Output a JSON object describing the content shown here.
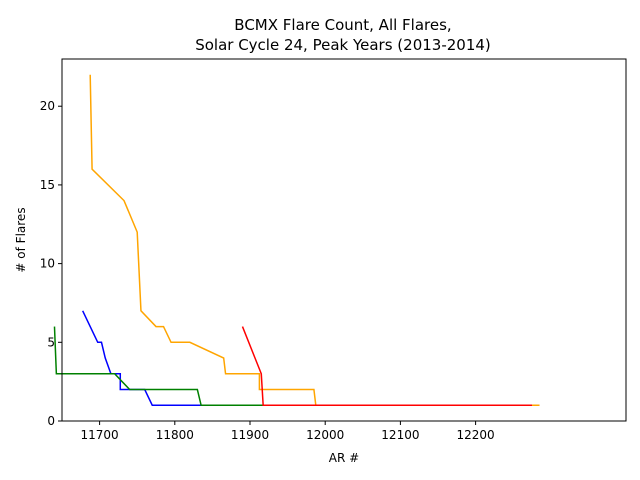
{
  "chart_data": {
    "type": "line",
    "title_line1": "BCMX Flare Count, All Flares,",
    "title_line2": "Solar Cycle 24, Peak Years (2013-2014)",
    "xlabel": "AR #",
    "ylabel": "# of Flares",
    "xlim": [
      12130,
      12280
    ],
    "ylim": [
      0,
      23
    ],
    "xticks": [
      {
        "value": 12140,
        "label": "11700"
      },
      {
        "value": 12160,
        "label": "11800"
      },
      {
        "value": 12180,
        "label": "11900"
      },
      {
        "value": 12200,
        "label": "12000"
      },
      {
        "value": 12220,
        "label": "12100"
      },
      {
        "value": 12240,
        "label": "12200"
      }
    ],
    "yticks": [
      0,
      5,
      10,
      15,
      20
    ],
    "grid": false,
    "series": [
      {
        "class": "B",
        "color": "#0000ff",
        "points": [
          [
            12135.5,
            7
          ],
          [
            12137.5,
            6
          ],
          [
            12138.5,
            5.5
          ],
          [
            12139.5,
            5
          ],
          [
            12140.5,
            5
          ],
          [
            12141.5,
            4
          ],
          [
            12143,
            3
          ],
          [
            12145.5,
            3
          ],
          [
            12145.5,
            2
          ],
          [
            12147,
            2
          ],
          [
            12152,
            2
          ],
          [
            12154,
            1
          ],
          [
            12159,
            1
          ],
          [
            12168,
            1
          ],
          [
            12185,
            1
          ]
        ]
      },
      {
        "class": "C",
        "color": "#ffa500",
        "points": [
          [
            12137.5,
            22
          ],
          [
            12138,
            16
          ],
          [
            12146.5,
            14
          ],
          [
            12150,
            12
          ],
          [
            12151,
            7
          ],
          [
            12155,
            6
          ],
          [
            12157,
            6
          ],
          [
            12159,
            5
          ],
          [
            12164,
            5
          ],
          [
            12173,
            4
          ],
          [
            12173.5,
            3
          ],
          [
            12181,
            3
          ],
          [
            12182.5,
            3
          ],
          [
            12182.5,
            2
          ],
          [
            12197,
            2
          ],
          [
            12197.5,
            1
          ],
          [
            12210,
            1
          ],
          [
            12240,
            1
          ],
          [
            12250,
            1
          ],
          [
            12252,
            1
          ],
          [
            12257,
            1
          ]
        ]
      },
      {
        "class": "M",
        "color": "#008000",
        "points": [
          [
            12128,
            6
          ],
          [
            12128.5,
            3
          ],
          [
            12133,
            3
          ],
          [
            12136,
            3
          ],
          [
            12138,
            3
          ],
          [
            12140,
            3
          ],
          [
            12141.5,
            3
          ],
          [
            12144,
            3
          ],
          [
            12148,
            2
          ],
          [
            12152,
            2
          ],
          [
            12159,
            2
          ],
          [
            12166,
            2
          ],
          [
            12167,
            1
          ],
          [
            12175,
            1
          ],
          [
            12183,
            1
          ],
          [
            12185,
            1
          ]
        ]
      },
      {
        "class": "X",
        "color": "#ff0000",
        "points": [
          [
            12178,
            6
          ],
          [
            12183,
            3
          ],
          [
            12183.5,
            1
          ],
          [
            12192,
            1
          ],
          [
            12200,
            1
          ],
          [
            12215,
            1
          ],
          [
            12230,
            1
          ],
          [
            12255,
            1
          ]
        ]
      }
    ]
  }
}
